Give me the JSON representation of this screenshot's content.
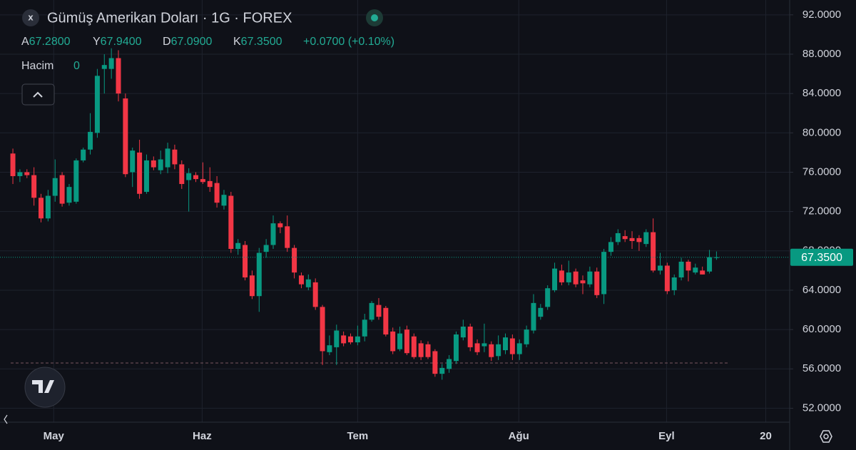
{
  "header": {
    "close_button": "x",
    "title": "Gümüş Amerikan Doları · 1G · FOREX",
    "ohlc": [
      {
        "key": "A",
        "value": "67.2800"
      },
      {
        "key": "Y",
        "value": "67.9400"
      },
      {
        "key": "D",
        "value": "67.0900"
      },
      {
        "key": "K",
        "value": "67.3500"
      }
    ],
    "change": "+0.0700 (+0.10%)",
    "volume_label": "Hacim",
    "volume_value": "0"
  },
  "chart_data": {
    "type": "candlestick",
    "up_color": "#089981",
    "down_color": "#f23645",
    "open": [
      77.9,
      75.6,
      76.0,
      75.7,
      73.4,
      71.3,
      73.6,
      75.7,
      72.9,
      73.0,
      77.2,
      78.3,
      80.0,
      86.5,
      86.5,
      87.6,
      83.5,
      76.0,
      78.0,
      74.0,
      77.2,
      76.2,
      76.5,
      78.3,
      76.8,
      75.2,
      75.7,
      75.3,
      75.1,
      74.9,
      72.6,
      73.6,
      68.2,
      68.6,
      65.5,
      63.4,
      67.9,
      68.6,
      70.8,
      70.5,
      68.3,
      65.5,
      64.3,
      64.8,
      62.3,
      57.7,
      58.2,
      59.4,
      59.3,
      58.7,
      59.3,
      61.0,
      62.5,
      62.2,
      59.8,
      58.0,
      60.0,
      59.3,
      58.6,
      58.5,
      57.8,
      55.5,
      56.0,
      56.8,
      59.2,
      60.3,
      58.6,
      58.3,
      58.5,
      57.3,
      57.9,
      59.1,
      57.5,
      58.5,
      59.9,
      61.3,
      62.3,
      64.0,
      66.0,
      64.8,
      65.9,
      65.0,
      64.6,
      65.9,
      63.6,
      67.9,
      68.9,
      69.5,
      69.3,
      69.3,
      68.7,
      69.9,
      66.0,
      66.5,
      64.0,
      65.3,
      66.9,
      65.8,
      66.0,
      65.9,
      67.28
    ],
    "high": [
      78.4,
      76.3,
      76.3,
      76.5,
      73.8,
      74.2,
      77.3,
      76.0,
      74.8,
      77.4,
      78.5,
      82.0,
      86.5,
      88.0,
      88.6,
      88.4,
      84.0,
      78.5,
      79.3,
      77.8,
      77.6,
      78.2,
      79.0,
      78.8,
      77.2,
      76.4,
      76.0,
      77.0,
      76.5,
      75.6,
      74.2,
      74.0,
      69.2,
      69.0,
      66.0,
      68.3,
      69.2,
      71.6,
      71.0,
      71.6,
      68.6,
      65.8,
      65.6,
      65.2,
      62.5,
      59.4,
      60.5,
      59.8,
      59.6,
      60.4,
      61.6,
      62.9,
      63.2,
      62.4,
      60.2,
      60.3,
      60.4,
      59.6,
      58.9,
      58.8,
      58.0,
      56.5,
      57.4,
      59.8,
      61.0,
      60.6,
      59.0,
      60.6,
      58.8,
      59.4,
      59.6,
      59.5,
      59.0,
      60.4,
      63.6,
      62.6,
      64.5,
      66.8,
      66.6,
      67.0,
      66.2,
      65.5,
      66.4,
      66.3,
      68.2,
      69.4,
      70.2,
      70.1,
      70.0,
      69.6,
      70.2,
      71.3,
      67.8,
      66.8,
      65.6,
      67.3,
      67.1,
      66.7,
      66.4,
      68.1,
      67.94
    ],
    "low": [
      74.8,
      75.0,
      75.4,
      72.6,
      70.9,
      71.0,
      73.0,
      72.5,
      72.6,
      72.8,
      77.0,
      77.8,
      79.5,
      84.0,
      85.5,
      83.2,
      75.5,
      74.5,
      73.3,
      73.8,
      76.2,
      75.8,
      75.9,
      76.3,
      74.3,
      72.0,
      75.0,
      74.8,
      74.0,
      72.4,
      72.2,
      67.8,
      67.6,
      65.0,
      63.1,
      61.8,
      67.3,
      68.2,
      69.8,
      67.9,
      65.2,
      64.2,
      64.0,
      62.0,
      56.4,
      57.4,
      56.4,
      58.3,
      58.5,
      58.4,
      58.8,
      60.8,
      61.0,
      59.3,
      57.5,
      57.8,
      57.4,
      57.0,
      56.9,
      57.0,
      55.2,
      54.9,
      55.6,
      56.5,
      58.9,
      57.8,
      57.4,
      57.7,
      56.8,
      56.9,
      57.5,
      56.9,
      56.9,
      58.2,
      59.6,
      61.0,
      62.0,
      63.8,
      64.5,
      64.5,
      64.3,
      63.6,
      64.3,
      63.2,
      62.6,
      67.5,
      68.6,
      68.9,
      68.2,
      68.0,
      68.4,
      65.8,
      65.6,
      63.6,
      63.5,
      65.0,
      64.9,
      65.6,
      65.6,
      65.7,
      67.09
    ],
    "close": [
      75.6,
      76.0,
      75.7,
      73.4,
      71.3,
      73.6,
      75.4,
      72.8,
      74.5,
      77.2,
      78.3,
      80.1,
      85.8,
      86.9,
      87.6,
      84.0,
      75.8,
      78.2,
      73.8,
      77.2,
      76.5,
      77.3,
      78.4,
      76.8,
      74.8,
      75.9,
      75.3,
      75.0,
      74.5,
      72.9,
      73.7,
      68.2,
      68.8,
      65.3,
      63.4,
      67.8,
      68.6,
      70.8,
      70.4,
      68.3,
      65.8,
      64.6,
      65.1,
      62.3,
      57.8,
      58.4,
      59.9,
      58.6,
      58.7,
      59.3,
      61.0,
      62.7,
      61.3,
      59.5,
      57.8,
      59.6,
      57.6,
      57.2,
      57.2,
      57.2,
      55.5,
      56.1,
      57.0,
      59.5,
      60.3,
      58.2,
      57.7,
      58.6,
      57.2,
      58.5,
      59.2,
      57.5,
      58.6,
      60.0,
      62.7,
      62.2,
      64.2,
      66.2,
      64.8,
      65.8,
      64.6,
      64.7,
      65.9,
      63.5,
      67.9,
      68.9,
      69.8,
      69.2,
      69.0,
      68.9,
      69.9,
      66.0,
      66.5,
      63.9,
      65.3,
      66.9,
      66.0,
      66.3,
      65.6,
      67.35,
      67.35
    ],
    "xlim": [
      -1.83,
      110.4
    ],
    "xticks": [
      {
        "value": 5.8,
        "label": "May"
      },
      {
        "value": 26.9,
        "label": "Haz"
      },
      {
        "value": 49.0,
        "label": "Tem"
      },
      {
        "value": 71.9,
        "label": "Ağu"
      },
      {
        "value": 92.9,
        "label": "Eyl"
      },
      {
        "value": 107.0,
        "label": "20"
      }
    ],
    "ylim": [
      50.58,
      93.51
    ],
    "yticks": [
      {
        "value": 52,
        "label": "52.0000"
      },
      {
        "value": 56,
        "label": "56.0000"
      },
      {
        "value": 60,
        "label": "60.0000"
      },
      {
        "value": 64,
        "label": "64.0000"
      },
      {
        "value": 68,
        "label": "68.0000"
      },
      {
        "value": 72,
        "label": "72.0000"
      },
      {
        "value": 76,
        "label": "76.0000"
      },
      {
        "value": 80,
        "label": "80.0000"
      },
      {
        "value": 84,
        "label": "84.0000"
      },
      {
        "value": 88,
        "label": "88.0000"
      },
      {
        "value": 92,
        "label": "92.0000"
      }
    ],
    "last_price": {
      "value": 67.35,
      "label": "67.3500"
    },
    "reference_line": 56.6,
    "grid": true
  }
}
